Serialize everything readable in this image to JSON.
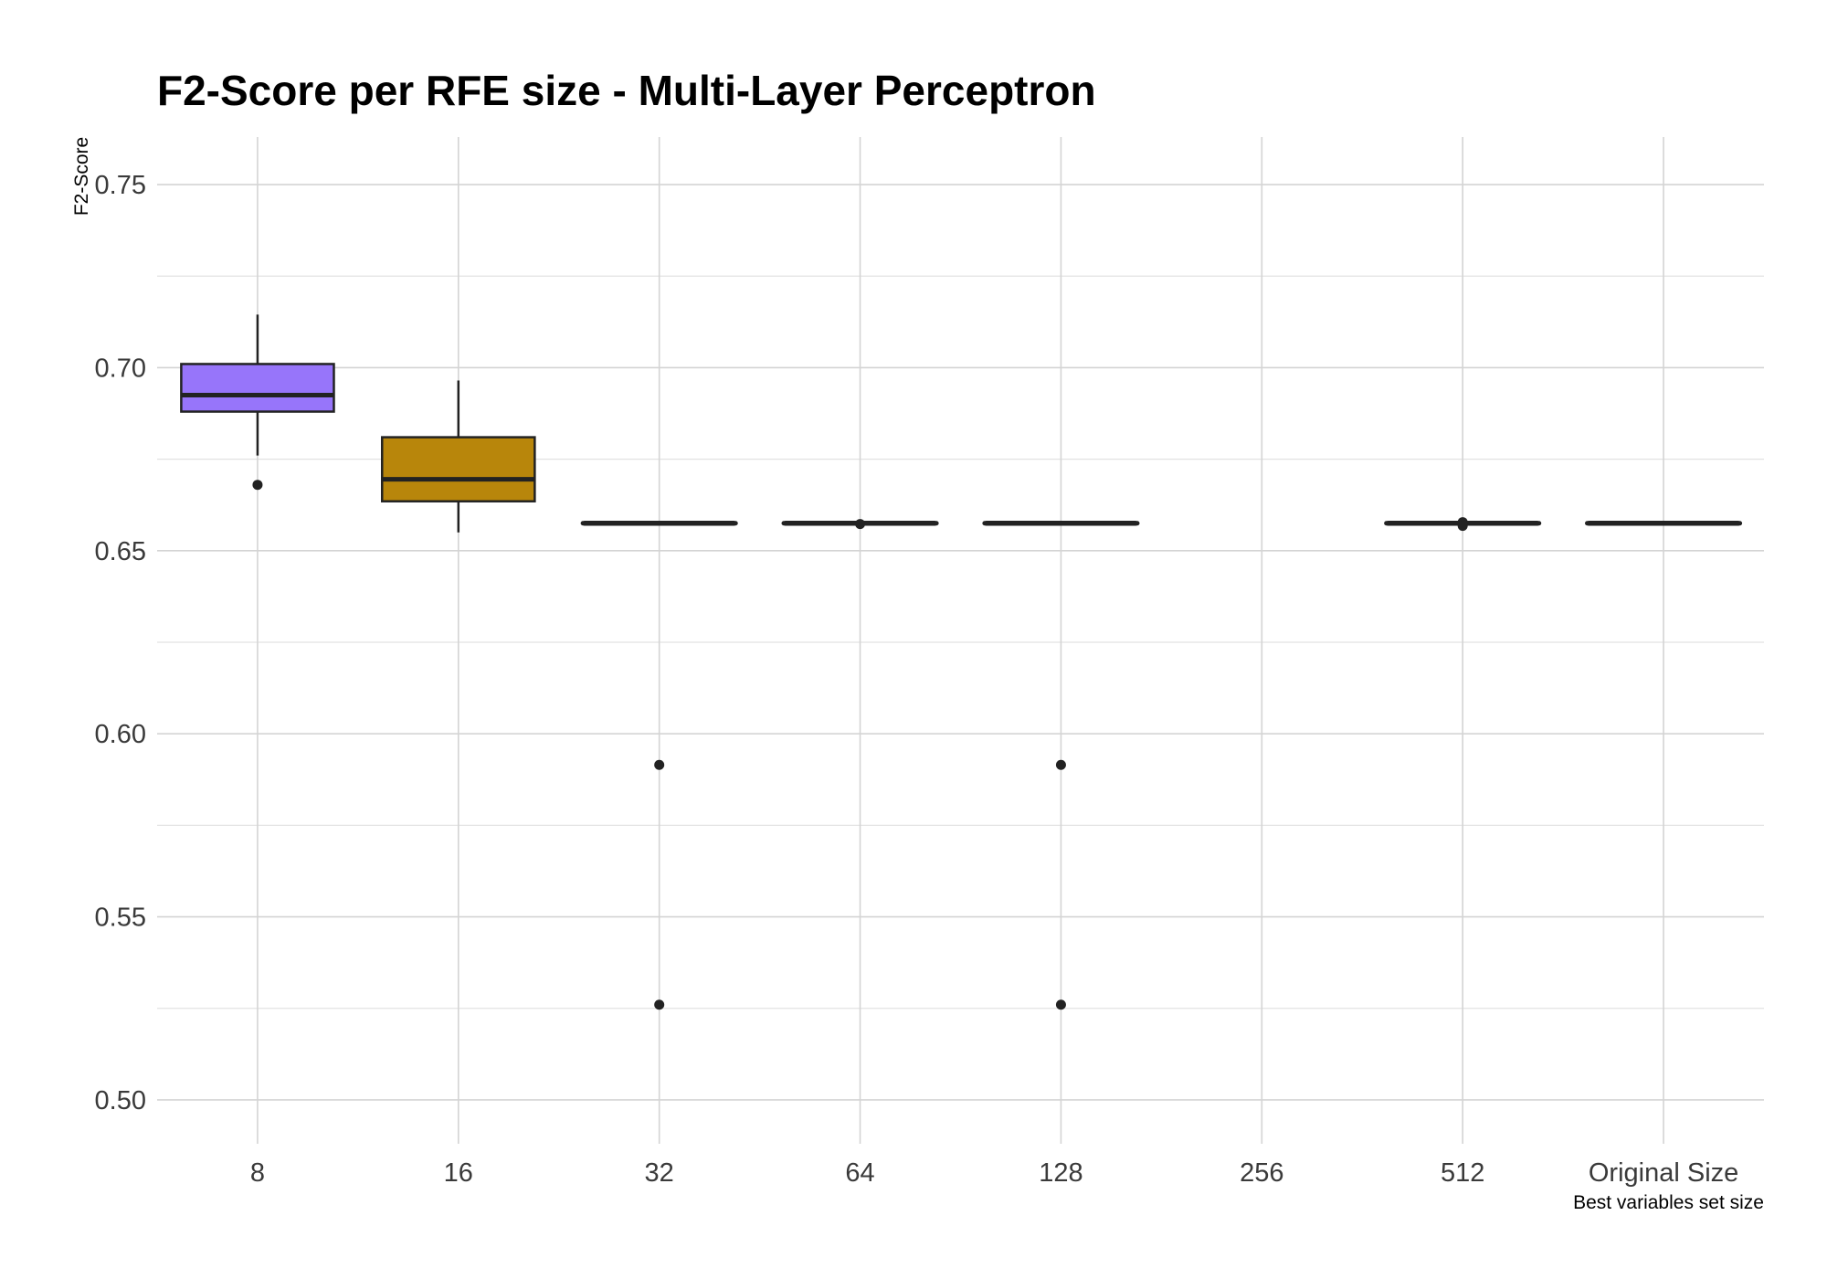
{
  "chart_data": {
    "type": "boxplot",
    "title": "F2-Score per RFE size - Multi-Layer Perceptron",
    "xlabel": "Best variables set size",
    "ylabel": "F2-Score",
    "categories": [
      "8",
      "16",
      "32",
      "64",
      "128",
      "256",
      "512",
      "Original Size"
    ],
    "ylim": [
      0.488,
      0.763
    ],
    "yticks": [
      0.5,
      0.55,
      0.6,
      0.65,
      0.7,
      0.75
    ],
    "ytick_labels": [
      "0.50",
      "0.55",
      "0.60",
      "0.65",
      "0.70",
      "0.75"
    ],
    "grid": true,
    "legend": "none",
    "boxes": [
      {
        "category": "8",
        "whisker_low": 0.676,
        "q1": 0.688,
        "median": 0.6925,
        "q3": 0.701,
        "whisker_high": 0.7145,
        "outliers": [
          0.668
        ],
        "fill": "#9775fa"
      },
      {
        "category": "16",
        "whisker_low": 0.655,
        "q1": 0.6635,
        "median": 0.6695,
        "q3": 0.681,
        "whisker_high": 0.6965,
        "outliers": [],
        "fill": "#b8860b"
      },
      {
        "category": "32",
        "whisker_low": 0.6575,
        "q1": 0.6575,
        "median": 0.6575,
        "q3": 0.6575,
        "whisker_high": 0.6575,
        "outliers": [
          0.5915,
          0.526
        ],
        "fill": "#2f2f2f"
      },
      {
        "category": "64",
        "whisker_low": 0.6575,
        "q1": 0.6575,
        "median": 0.6575,
        "q3": 0.6575,
        "whisker_high": 0.6575,
        "outliers": [
          0.6573
        ],
        "fill": "#2f2f2f"
      },
      {
        "category": "128",
        "whisker_low": 0.6575,
        "q1": 0.6575,
        "median": 0.6575,
        "q3": 0.6575,
        "whisker_high": 0.6575,
        "outliers": [
          0.5915,
          0.526
        ],
        "fill": "#2f2f2f"
      },
      {
        "category": "512",
        "whisker_low": 0.6575,
        "q1": 0.6575,
        "median": 0.6575,
        "q3": 0.6575,
        "whisker_high": 0.6575,
        "outliers": [
          0.6578,
          0.6568
        ],
        "fill": "#2f2f2f"
      },
      {
        "category": "Original Size",
        "whisker_low": 0.6573,
        "q1": 0.6573,
        "median": 0.6575,
        "q3": 0.6577,
        "whisker_high": 0.6577,
        "outliers": [],
        "fill": "#2f2f2f"
      }
    ],
    "colors": {
      "box_stroke": "#222222",
      "grid": "#d4d4d4",
      "point": "#222222"
    }
  }
}
